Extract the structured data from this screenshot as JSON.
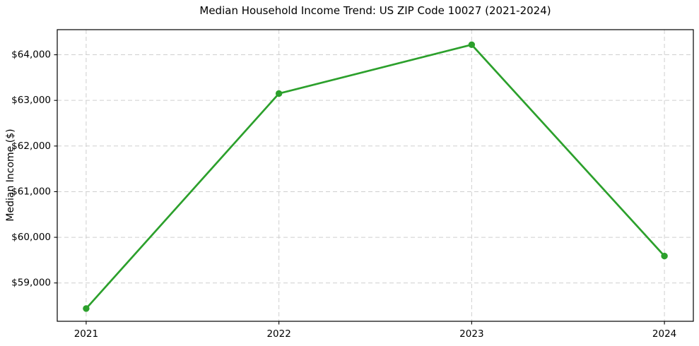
{
  "chart_data": {
    "type": "line",
    "title": "Median Household Income Trend: US ZIP Code 10027 (2021-2024)",
    "xlabel": "",
    "ylabel": "Median Income ($)",
    "x": [
      2021,
      2022,
      2023,
      2024
    ],
    "values": [
      58440,
      63150,
      64220,
      59590
    ],
    "x_tick_labels": [
      "2021",
      "2022",
      "2023",
      "2024"
    ],
    "y_ticks": [
      59000,
      60000,
      61000,
      62000,
      63000,
      64000
    ],
    "y_tick_labels": [
      "$59,000",
      "$60,000",
      "$61,000",
      "$62,000",
      "$63,000",
      "$64,000"
    ],
    "xlim": [
      2020.85,
      2024.15
    ],
    "ylim": [
      58160,
      64550
    ],
    "grid": true,
    "grid_style": "dashed",
    "legend": "none",
    "style": {
      "line_width": 2.7,
      "marker": "circle",
      "marker_radius": 4.7
    },
    "colors": {
      "line": "#2ca02c",
      "marker": "#2ca02c",
      "grid": "#cfcfcf",
      "spine": "#000000",
      "tick": "#000000",
      "text": "#000000",
      "background": "#ffffff"
    }
  }
}
